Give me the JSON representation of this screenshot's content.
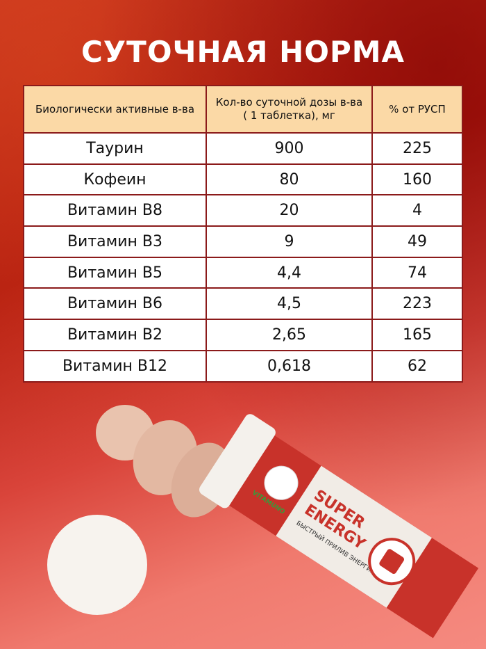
{
  "title": "СУТОЧНАЯ НОРМА",
  "table": {
    "headers": [
      "Биологически активные в-ва",
      "Кол-во суточной дозы в-ва ( 1 таблетка), мг",
      "% от РУСП"
    ],
    "rows": [
      [
        "Таурин",
        "900",
        "225"
      ],
      [
        "Кофеин",
        "80",
        "160"
      ],
      [
        "Витамин В8",
        "20",
        "4"
      ],
      [
        "Витамин В3",
        "9",
        "49"
      ],
      [
        "Витамин В5",
        "4,4",
        "74"
      ],
      [
        "Витамин В6",
        "4,5",
        "223"
      ],
      [
        "Витамин В2",
        "2,65",
        "165"
      ],
      [
        "Витамин В12",
        "0,618",
        "62"
      ]
    ]
  },
  "product": {
    "brand": "VITAMUNO",
    "name_line1": "SUPER",
    "name_line2": "ENERGY",
    "tagline": "БЫСТРЫЙ ПРИЛИВ ЭНЕРГИИ",
    "icon": "battery-bolt-icon"
  }
}
